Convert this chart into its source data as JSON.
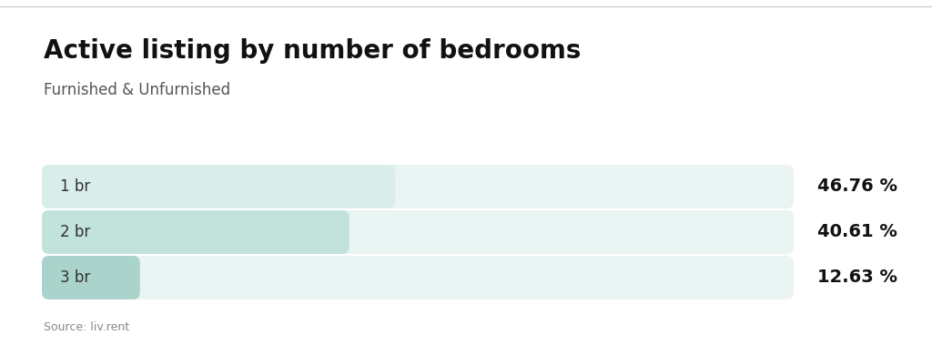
{
  "title": "Active listing by number of bedrooms",
  "subtitle": "Furnished & Unfurnished",
  "source": "Source: liv.rent",
  "categories": [
    "1 br",
    "2 br",
    "3 br"
  ],
  "values": [
    46.76,
    40.61,
    12.63
  ],
  "max_value": 100,
  "bar_colors": [
    "#d9eeea",
    "#c2e3dc",
    "#aad3cc"
  ],
  "bg_full_color": "#eaf4f2",
  "background_color": "#ffffff",
  "title_fontsize": 20,
  "subtitle_fontsize": 12,
  "label_fontsize": 12,
  "value_fontsize": 14,
  "source_fontsize": 9,
  "top_border_color": "#cccccc",
  "title_color": "#111111",
  "subtitle_color": "#555555",
  "label_color": "#333333",
  "value_color": "#111111",
  "source_color": "#888888"
}
